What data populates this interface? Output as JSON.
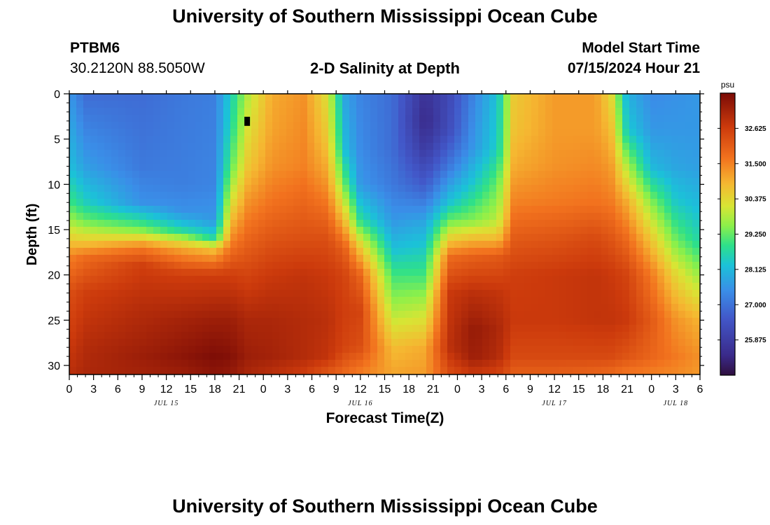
{
  "page": {
    "title_top": "University of Southern Mississippi Ocean Cube",
    "title_bottom": "University of Southern Mississippi Ocean Cube",
    "station": "PTBM6",
    "coords": "30.2120N  88.5050W",
    "plot_title": "2-D Salinity at Depth",
    "model_label": "Model Start Time",
    "model_time": "07/15/2024 Hour 21"
  },
  "chart_data": {
    "type": "heatmap",
    "title": "2-D Salinity at Depth",
    "xlabel": "Forecast Time(Z)",
    "ylabel": "Depth (ft)",
    "x_range_hours": [
      0,
      78
    ],
    "x_ticks": [
      {
        "h": 0,
        "label": "0"
      },
      {
        "h": 3,
        "label": "3"
      },
      {
        "h": 6,
        "label": "6"
      },
      {
        "h": 9,
        "label": "9"
      },
      {
        "h": 12,
        "label": "12"
      },
      {
        "h": 15,
        "label": "15"
      },
      {
        "h": 18,
        "label": "18"
      },
      {
        "h": 21,
        "label": "21"
      },
      {
        "h": 24,
        "label": "0"
      },
      {
        "h": 27,
        "label": "3"
      },
      {
        "h": 30,
        "label": "6"
      },
      {
        "h": 33,
        "label": "9"
      },
      {
        "h": 36,
        "label": "12"
      },
      {
        "h": 39,
        "label": "15"
      },
      {
        "h": 42,
        "label": "18"
      },
      {
        "h": 45,
        "label": "21"
      },
      {
        "h": 48,
        "label": "0"
      },
      {
        "h": 51,
        "label": "3"
      },
      {
        "h": 54,
        "label": "6"
      },
      {
        "h": 57,
        "label": "9"
      },
      {
        "h": 60,
        "label": "12"
      },
      {
        "h": 63,
        "label": "15"
      },
      {
        "h": 66,
        "label": "18"
      },
      {
        "h": 69,
        "label": "21"
      },
      {
        "h": 72,
        "label": "0"
      },
      {
        "h": 75,
        "label": "3"
      },
      {
        "h": 78,
        "label": "6"
      }
    ],
    "date_labels": [
      {
        "h": 12,
        "label": "JUL 15"
      },
      {
        "h": 36,
        "label": "JUL 16"
      },
      {
        "h": 60,
        "label": "JUL 17"
      },
      {
        "h": 75,
        "label": "JUL 18"
      }
    ],
    "y_range_ft": [
      0,
      31
    ],
    "y_ticks": [
      0,
      5,
      10,
      15,
      20,
      25,
      30
    ],
    "colorbar": {
      "unit": "psu",
      "range": [
        24.75,
        33.75
      ],
      "ticks": [
        "25.875",
        "27.000",
        "28.125",
        "29.250",
        "30.375",
        "31.500",
        "32.625"
      ],
      "stops": [
        [
          0.0,
          "#2f0f3e"
        ],
        [
          0.07,
          "#3a2a8a"
        ],
        [
          0.2,
          "#4257c8"
        ],
        [
          0.3,
          "#3a8ee8"
        ],
        [
          0.39,
          "#1bc2d8"
        ],
        [
          0.46,
          "#2ee08a"
        ],
        [
          0.53,
          "#8cf04a"
        ],
        [
          0.6,
          "#d8e534"
        ],
        [
          0.68,
          "#f5b731"
        ],
        [
          0.77,
          "#f2721e"
        ],
        [
          0.88,
          "#cc3a0c"
        ],
        [
          1.0,
          "#7a0b06"
        ]
      ]
    },
    "marker": {
      "hour": 22,
      "depth_ft": 3,
      "label": "peak-model-time"
    },
    "salinity_profiles": [
      {
        "hour": 0,
        "depth_ft": [
          0,
          8,
          12,
          14,
          16,
          18,
          22,
          28,
          31
        ],
        "psu": [
          27.6,
          28.2,
          29.0,
          29.7,
          30.5,
          31.5,
          32.3,
          32.7,
          32.9
        ]
      },
      {
        "hour": 2,
        "depth_ft": [
          0,
          8,
          12,
          14,
          16,
          18,
          22,
          28,
          31
        ],
        "psu": [
          26.9,
          27.7,
          28.5,
          29.3,
          30.4,
          31.8,
          32.6,
          33.0,
          33.1
        ]
      },
      {
        "hour": 9,
        "depth_ft": [
          0,
          8,
          12,
          15,
          17,
          19,
          24,
          29,
          31
        ],
        "psu": [
          26.9,
          27.1,
          27.5,
          29.4,
          31.6,
          32.6,
          33.0,
          33.3,
          33.2
        ]
      },
      {
        "hour": 14,
        "depth_ft": [
          0,
          10,
          13,
          15,
          17,
          20,
          25,
          29,
          31
        ],
        "psu": [
          27.1,
          27.2,
          27.5,
          28.6,
          31.0,
          32.6,
          33.2,
          33.5,
          33.3
        ]
      },
      {
        "hour": 18,
        "depth_ft": [
          0,
          10,
          14,
          16,
          17,
          20,
          25,
          29,
          31
        ],
        "psu": [
          27.2,
          27.3,
          27.6,
          28.7,
          30.6,
          32.6,
          33.3,
          33.7,
          33.5
        ]
      },
      {
        "hour": 20,
        "depth_ft": [
          0,
          4,
          8,
          12,
          16,
          20,
          25,
          29,
          31
        ],
        "psu": [
          28.5,
          28.7,
          29.2,
          30.2,
          31.4,
          32.6,
          33.3,
          33.6,
          33.4
        ]
      },
      {
        "hour": 22,
        "depth_ft": [
          0,
          4,
          8,
          12,
          16,
          20,
          25,
          29,
          31
        ],
        "psu": [
          29.8,
          30.2,
          30.6,
          31.3,
          31.9,
          32.5,
          33.1,
          33.3,
          33.1
        ]
      },
      {
        "hour": 25,
        "depth_ft": [
          0,
          4,
          8,
          12,
          16,
          20,
          25,
          29,
          31
        ],
        "psu": [
          31.0,
          31.1,
          31.3,
          31.7,
          32.2,
          32.7,
          33.1,
          33.2,
          32.9
        ]
      },
      {
        "hour": 29,
        "depth_ft": [
          0,
          4,
          8,
          12,
          16,
          20,
          25,
          29,
          31
        ],
        "psu": [
          31.3,
          31.4,
          31.5,
          31.9,
          32.3,
          32.8,
          33.0,
          33.0,
          32.6
        ]
      },
      {
        "hour": 32,
        "depth_ft": [
          0,
          5,
          9,
          13,
          16,
          20,
          25,
          29,
          31
        ],
        "psu": [
          30.2,
          30.6,
          31.1,
          31.8,
          32.3,
          32.7,
          32.9,
          32.8,
          32.1
        ]
      },
      {
        "hour": 34,
        "depth_ft": [
          0,
          6,
          10,
          14,
          17,
          20,
          24,
          28,
          31
        ],
        "psu": [
          27.8,
          28.2,
          29.3,
          30.8,
          32.0,
          32.5,
          32.6,
          32.5,
          31.8
        ]
      },
      {
        "hour": 36,
        "depth_ft": [
          0,
          6,
          10,
          14,
          17,
          20,
          24,
          28,
          31
        ],
        "psu": [
          27.3,
          27.4,
          27.6,
          28.8,
          30.6,
          31.9,
          32.5,
          32.3,
          31.5
        ]
      },
      {
        "hour": 40,
        "depth_ft": [
          0,
          6,
          10,
          14,
          17,
          20,
          24,
          28,
          31
        ],
        "psu": [
          26.9,
          26.9,
          27.1,
          27.6,
          28.2,
          29.0,
          29.8,
          30.8,
          31.1
        ]
      },
      {
        "hour": 44,
        "depth_ft": [
          0,
          3,
          6,
          10,
          14,
          17,
          20,
          24,
          28,
          31
        ],
        "psu": [
          25.6,
          25.4,
          25.8,
          26.6,
          27.8,
          28.4,
          29.0,
          30.0,
          31.0,
          31.2
        ]
      },
      {
        "hour": 47,
        "depth_ft": [
          0,
          4,
          8,
          12,
          14,
          16,
          18,
          22,
          28,
          31
        ],
        "psu": [
          26.2,
          26.3,
          27.1,
          28.3,
          29.3,
          30.5,
          31.8,
          32.7,
          32.9,
          32.3
        ]
      },
      {
        "hour": 50,
        "depth_ft": [
          0,
          6,
          10,
          14,
          16,
          18,
          22,
          26,
          29,
          31
        ],
        "psu": [
          27.3,
          27.6,
          28.4,
          29.5,
          30.8,
          32.0,
          32.9,
          33.4,
          33.3,
          32.7
        ]
      },
      {
        "hour": 53,
        "depth_ft": [
          0,
          6,
          10,
          14,
          16,
          18,
          22,
          26,
          29,
          31
        ],
        "psu": [
          28.3,
          28.5,
          29.3,
          29.9,
          30.8,
          32.1,
          32.8,
          33.1,
          33.0,
          32.5
        ]
      },
      {
        "hour": 55,
        "depth_ft": [
          0,
          4,
          8,
          12,
          16,
          20,
          25,
          29,
          31
        ],
        "psu": [
          30.6,
          30.7,
          31.0,
          31.5,
          32.1,
          32.6,
          32.7,
          32.4,
          32.0
        ]
      },
      {
        "hour": 60,
        "depth_ft": [
          0,
          4,
          8,
          12,
          16,
          20,
          25,
          29,
          31
        ],
        "psu": [
          31.2,
          31.2,
          31.3,
          31.6,
          32.2,
          32.7,
          32.7,
          32.4,
          32.0
        ]
      },
      {
        "hour": 65,
        "depth_ft": [
          0,
          4,
          8,
          12,
          16,
          20,
          25,
          29,
          31
        ],
        "psu": [
          31.2,
          31.2,
          31.4,
          31.7,
          32.4,
          32.8,
          32.8,
          32.4,
          31.9
        ]
      },
      {
        "hour": 67,
        "depth_ft": [
          0,
          4,
          8,
          12,
          16,
          20,
          25,
          29,
          31
        ],
        "psu": [
          30.4,
          30.8,
          31.2,
          31.6,
          32.2,
          32.7,
          32.8,
          32.4,
          31.8
        ]
      },
      {
        "hour": 69,
        "depth_ft": [
          0,
          4,
          8,
          12,
          16,
          20,
          25,
          29,
          31
        ],
        "psu": [
          28.0,
          28.4,
          29.8,
          31.0,
          31.8,
          32.5,
          32.7,
          32.2,
          31.6
        ]
      },
      {
        "hour": 72,
        "depth_ft": [
          0,
          4,
          8,
          12,
          16,
          20,
          25,
          29,
          31
        ],
        "psu": [
          27.4,
          27.6,
          28.1,
          29.5,
          30.6,
          31.6,
          32.1,
          31.9,
          31.5
        ]
      },
      {
        "hour": 75,
        "depth_ft": [
          0,
          4,
          8,
          12,
          16,
          20,
          25,
          29,
          31
        ],
        "psu": [
          27.5,
          27.6,
          27.8,
          28.4,
          29.3,
          30.4,
          31.3,
          31.6,
          31.4
        ]
      },
      {
        "hour": 78,
        "depth_ft": [
          0,
          4,
          8,
          12,
          16,
          20,
          25,
          29,
          31
        ],
        "psu": [
          27.6,
          27.6,
          27.7,
          28.1,
          28.6,
          29.6,
          30.9,
          31.3,
          31.2
        ]
      }
    ]
  }
}
